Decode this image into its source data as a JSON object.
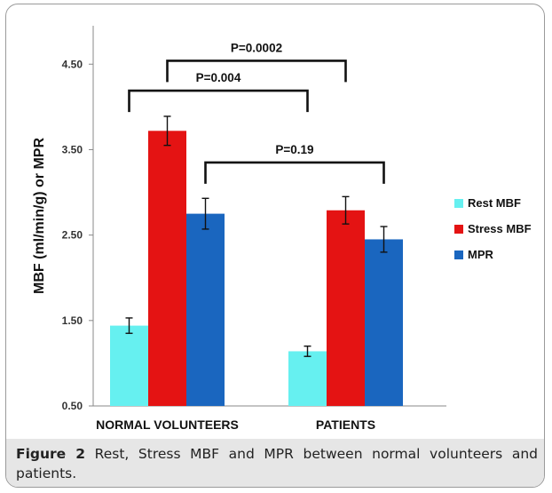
{
  "chart_data": {
    "type": "bar",
    "ylabel": "MBF (ml/min/g)  or MPR",
    "ylim": [
      0.5,
      4.95
    ],
    "yticks": [
      "0.50",
      "1.50",
      "2.50",
      "3.50",
      "4.50"
    ],
    "ytick_values": [
      0.5,
      1.5,
      2.5,
      3.5,
      4.5
    ],
    "categories": [
      "NORMAL VOLUNTEERS",
      "PATIENTS"
    ],
    "series": [
      {
        "name": "Rest MBF",
        "color": "#66f0f0",
        "values": [
          1.44,
          1.14
        ],
        "errors": [
          0.09,
          0.06
        ]
      },
      {
        "name": "Stress MBF",
        "color": "#e41313",
        "values": [
          3.72,
          2.79
        ],
        "errors": [
          0.17,
          0.16
        ]
      },
      {
        "name": "MPR",
        "color": "#1a66bf",
        "values": [
          2.75,
          2.45
        ],
        "errors": [
          0.18,
          0.15
        ]
      }
    ],
    "legend_position": "right",
    "grid": false,
    "annotations": [
      {
        "label": "P=0.0002",
        "y": 4.54,
        "from": [
          1,
          1
        ],
        "to": [
          0,
          1
        ]
      },
      {
        "label": "P=0.004",
        "y": 4.19,
        "from": [
          0,
          0
        ],
        "to": [
          1,
          0
        ]
      },
      {
        "label": "P=0.19",
        "y": 3.35,
        "from": [
          0,
          2
        ],
        "to": [
          1,
          2
        ]
      }
    ]
  },
  "caption": {
    "label": "Figure 2",
    "text": " Rest, Stress MBF and MPR between normal volunteers and patients."
  }
}
